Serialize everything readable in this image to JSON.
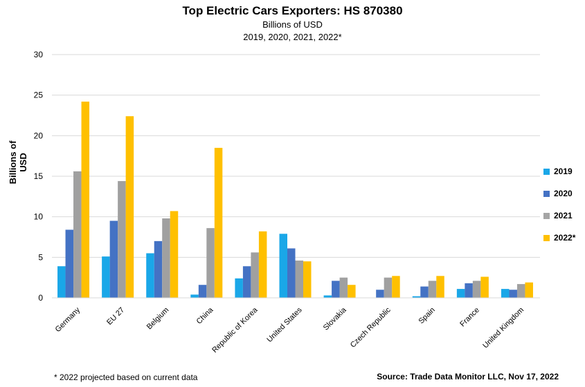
{
  "chart_data": {
    "type": "bar",
    "title": "Top Electric Cars Exporters: HS 870380",
    "subtitle": "Billions of USD",
    "years_line": "2019, 2020, 2021, 2022*",
    "ylabel": "Billions of USD",
    "xlabel": "",
    "ylim": [
      0,
      30
    ],
    "yticks": [
      "0",
      "5",
      "10",
      "15",
      "20",
      "25",
      "30"
    ],
    "grid": true,
    "legend_position": "right",
    "categories": [
      "Germany",
      "EU 27",
      "Belgium",
      "China",
      "Republic of Korea",
      "United States",
      "Slovakia",
      "Czech Republic",
      "Spain",
      "France",
      "United Kingdom"
    ],
    "series": [
      {
        "name": "2019",
        "color": "#1aa7e8",
        "pattern": "solid",
        "values": [
          3.9,
          5.1,
          5.5,
          0.4,
          2.4,
          7.9,
          0.3,
          0,
          0.2,
          1.1,
          1.1
        ]
      },
      {
        "name": "2020",
        "color": "#4472c4",
        "pattern": "solid",
        "values": [
          8.4,
          9.5,
          7.0,
          1.6,
          3.9,
          6.1,
          2.1,
          1.0,
          1.4,
          1.8,
          1.0
        ]
      },
      {
        "name": "2021",
        "color": "#a5a5a5",
        "pattern": "checker",
        "values": [
          15.6,
          14.4,
          9.8,
          8.6,
          5.6,
          4.6,
          2.5,
          2.5,
          2.1,
          2.1,
          1.7
        ]
      },
      {
        "name": "2022*",
        "color": "#ffc000",
        "pattern": "solid",
        "values": [
          24.2,
          22.4,
          10.7,
          18.5,
          8.2,
          4.5,
          1.6,
          2.7,
          2.7,
          2.6,
          1.9
        ]
      }
    ]
  },
  "footnote": "* 2022 projected based on  current data",
  "source": "Source: Trade Data Monitor LLC, Nov 17, 2022"
}
